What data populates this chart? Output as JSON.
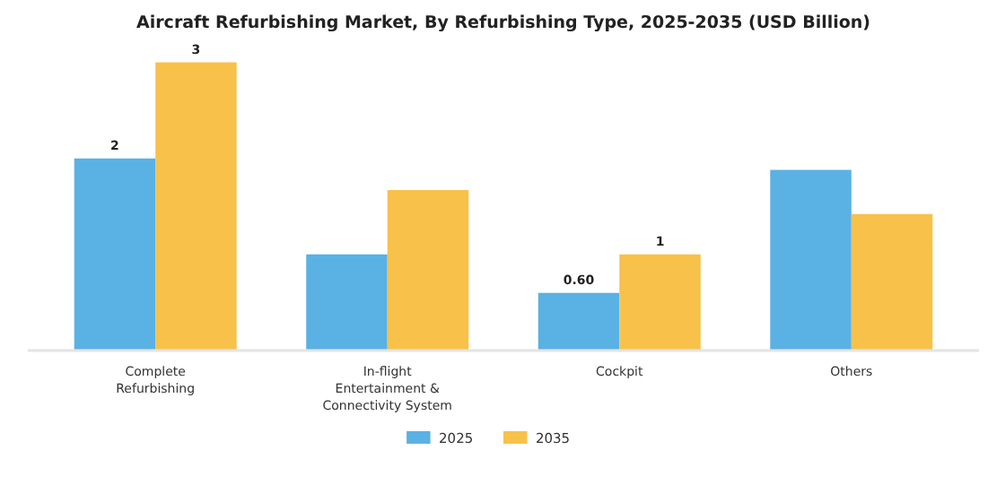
{
  "chart_data": {
    "type": "bar",
    "title": "Aircraft Refurbishing Market, By Refurbishing Type, 2025-2035 (USD Billion)",
    "categories": [
      "Complete Refurbishing",
      "In-flight Entertainment & Connectivity System",
      "Cockpit",
      "Others"
    ],
    "series": [
      {
        "name": "2025",
        "color": "#5ab1e3",
        "values": [
          2,
          1.0,
          0.6,
          1.88
        ],
        "value_labels": [
          "2",
          null,
          "0.60",
          null
        ]
      },
      {
        "name": "2035",
        "color": "#f8c14a",
        "values": [
          3,
          1.67,
          1,
          1.42
        ],
        "value_labels": [
          "3",
          null,
          "1",
          null
        ]
      }
    ],
    "legend": "bottom"
  }
}
